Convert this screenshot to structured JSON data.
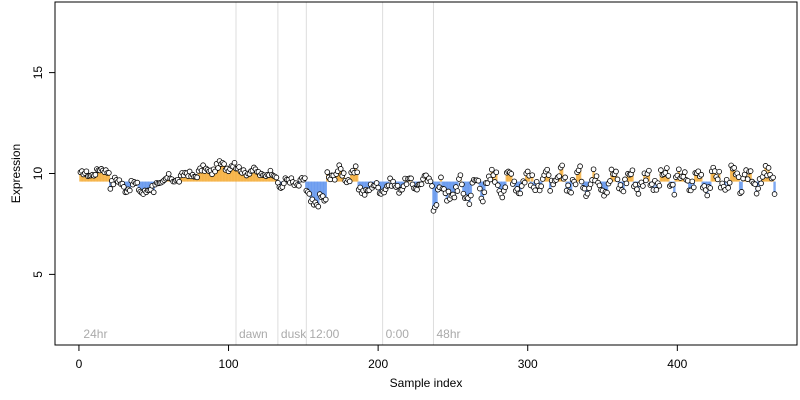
{
  "chart_data": {
    "type": "scatter",
    "title": "",
    "xlabel": "Sample index",
    "ylabel": "Expression",
    "xlim": [
      -16,
      480
    ],
    "ylim": [
      1.5,
      18.5
    ],
    "xticks": [
      0,
      100,
      200,
      300,
      400
    ],
    "yticks": [
      5,
      10,
      15
    ],
    "grid": false,
    "colors": {
      "axis": "#000000",
      "point_stroke": "#000000",
      "point_fill": "#ffffff",
      "separator": "#dddddd",
      "period_label": "#aaaaaa",
      "bar_above": "#f5b041",
      "bar_below": "#6699ee"
    },
    "periods": [
      {
        "label": "24hr",
        "start": 1
      },
      {
        "label": "dawn",
        "start": 105
      },
      {
        "label": "dusk",
        "start": 133
      },
      {
        "label": "12:00",
        "start": 152
      },
      {
        "label": "0:00",
        "start": 203
      },
      {
        "label": "48hr",
        "start": 237
      }
    ],
    "baseline": 9.6,
    "segments": [
      {
        "from": 1,
        "to": 20,
        "wave": [
          9.9,
          10.2
        ],
        "noise": 0.15
      },
      {
        "from": 21,
        "to": 50,
        "wave": [
          9.6,
          9.1
        ],
        "noise": 0.25
      },
      {
        "from": 51,
        "to": 104,
        "wave": [
          9.5,
          10.5
        ],
        "noise": 0.2
      },
      {
        "from": 105,
        "to": 132,
        "wave": [
          10.2,
          9.9
        ],
        "noise": 0.15
      },
      {
        "from": 133,
        "to": 151,
        "wave": [
          9.5,
          9.6
        ],
        "noise": 0.25
      },
      {
        "from": 152,
        "to": 165,
        "wave": [
          8.8,
          8.5
        ],
        "noise": 0.35
      },
      {
        "from": 166,
        "to": 186,
        "wave": [
          10.0,
          9.9
        ],
        "noise": 0.3
      },
      {
        "from": 187,
        "to": 236,
        "wave": [
          9.2,
          9.6
        ],
        "noise": 0.25
      },
      {
        "from": 237,
        "to": 270,
        "wave": [
          9.0,
          9.3
        ],
        "noise": 0.55
      },
      {
        "from": 271,
        "to": 465,
        "wave": [
          9.6,
          9.7
        ],
        "noise": 0.5
      }
    ],
    "n_points": 465,
    "seed": 17
  }
}
